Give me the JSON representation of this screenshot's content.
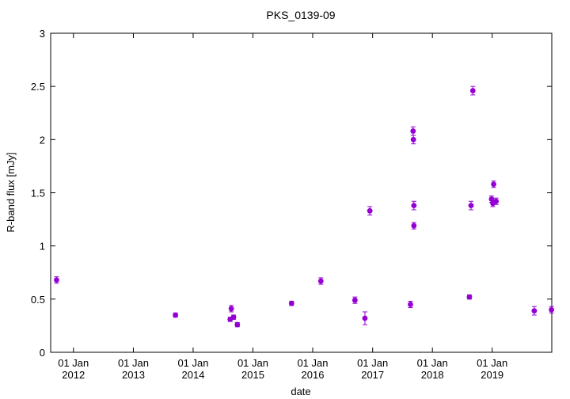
{
  "chart_data": {
    "type": "scatter",
    "title": "PKS_0139-09",
    "xlabel": "date",
    "ylabel": "R-band flux [mJy]",
    "x_format": "date",
    "xlim": [
      "2011-08-15",
      "2019-12-31"
    ],
    "ylim": [
      0,
      3
    ],
    "grid": false,
    "legend": "none",
    "yticks": [
      {
        "value": 0,
        "label": "0"
      },
      {
        "value": 0.5,
        "label": "0.5"
      },
      {
        "value": 1,
        "label": "1"
      },
      {
        "value": 1.5,
        "label": "1.5"
      },
      {
        "value": 2,
        "label": "2"
      },
      {
        "value": 2.5,
        "label": "2.5"
      },
      {
        "value": 3,
        "label": "3"
      }
    ],
    "xticks": [
      {
        "date": "2012-01-01",
        "label1": "01 Jan",
        "label2": "2012"
      },
      {
        "date": "2013-01-01",
        "label1": "01 Jan",
        "label2": "2013"
      },
      {
        "date": "2014-01-01",
        "label1": "01 Jan",
        "label2": "2014"
      },
      {
        "date": "2015-01-01",
        "label1": "01 Jan",
        "label2": "2015"
      },
      {
        "date": "2016-01-01",
        "label1": "01 Jan",
        "label2": "2016"
      },
      {
        "date": "2017-01-01",
        "label1": "01 Jan",
        "label2": "2017"
      },
      {
        "date": "2018-01-01",
        "label1": "01 Jan",
        "label2": "2018"
      },
      {
        "date": "2019-01-01",
        "label1": "01 Jan",
        "label2": "2019"
      }
    ],
    "series": [
      {
        "color": "#9400d3",
        "points": [
          {
            "x": "2011-09-20",
            "y": 0.68,
            "err": 0.03
          },
          {
            "x": "2013-09-15",
            "y": 0.35,
            "err": 0.02
          },
          {
            "x": "2014-08-15",
            "y": 0.31,
            "err": 0.02
          },
          {
            "x": "2014-08-22",
            "y": 0.41,
            "err": 0.03
          },
          {
            "x": "2014-09-05",
            "y": 0.33,
            "err": 0.02
          },
          {
            "x": "2014-09-28",
            "y": 0.26,
            "err": 0.02
          },
          {
            "x": "2015-08-25",
            "y": 0.46,
            "err": 0.02
          },
          {
            "x": "2016-02-20",
            "y": 0.67,
            "err": 0.03
          },
          {
            "x": "2016-09-15",
            "y": 0.49,
            "err": 0.03
          },
          {
            "x": "2016-11-15",
            "y": 0.32,
            "err": 0.06
          },
          {
            "x": "2016-12-15",
            "y": 1.33,
            "err": 0.04
          },
          {
            "x": "2017-08-20",
            "y": 0.45,
            "err": 0.03
          },
          {
            "x": "2017-09-05",
            "y": 2.08,
            "err": 0.04
          },
          {
            "x": "2017-09-07",
            "y": 2.0,
            "err": 0.04
          },
          {
            "x": "2017-09-10",
            "y": 1.38,
            "err": 0.04
          },
          {
            "x": "2017-09-10",
            "y": 1.19,
            "err": 0.03
          },
          {
            "x": "2018-08-15",
            "y": 0.52,
            "err": 0.02
          },
          {
            "x": "2018-08-25",
            "y": 1.38,
            "err": 0.04
          },
          {
            "x": "2018-09-05",
            "y": 2.46,
            "err": 0.04
          },
          {
            "x": "2018-12-28",
            "y": 1.44,
            "err": 0.03
          },
          {
            "x": "2019-01-05",
            "y": 1.4,
            "err": 0.03
          },
          {
            "x": "2019-01-10",
            "y": 1.58,
            "err": 0.03
          },
          {
            "x": "2019-01-25",
            "y": 1.42,
            "err": 0.03
          },
          {
            "x": "2019-09-15",
            "y": 0.39,
            "err": 0.04
          },
          {
            "x": "2019-12-29",
            "y": 0.4,
            "err": 0.03
          }
        ]
      }
    ]
  }
}
